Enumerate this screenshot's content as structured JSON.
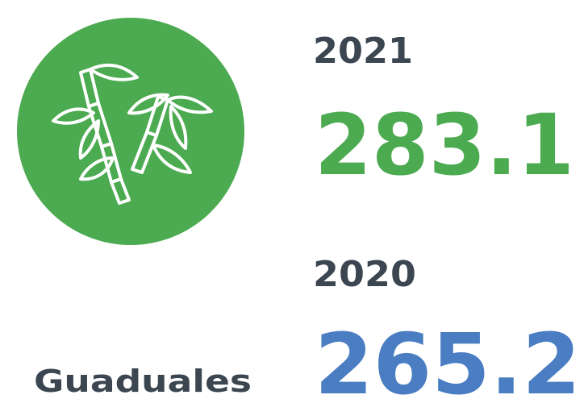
{
  "items": [
    {
      "year": "2021",
      "value": "283.1"
    },
    {
      "year": "2020",
      "value": "265.2"
    }
  ],
  "label": "Guaduales"
}
